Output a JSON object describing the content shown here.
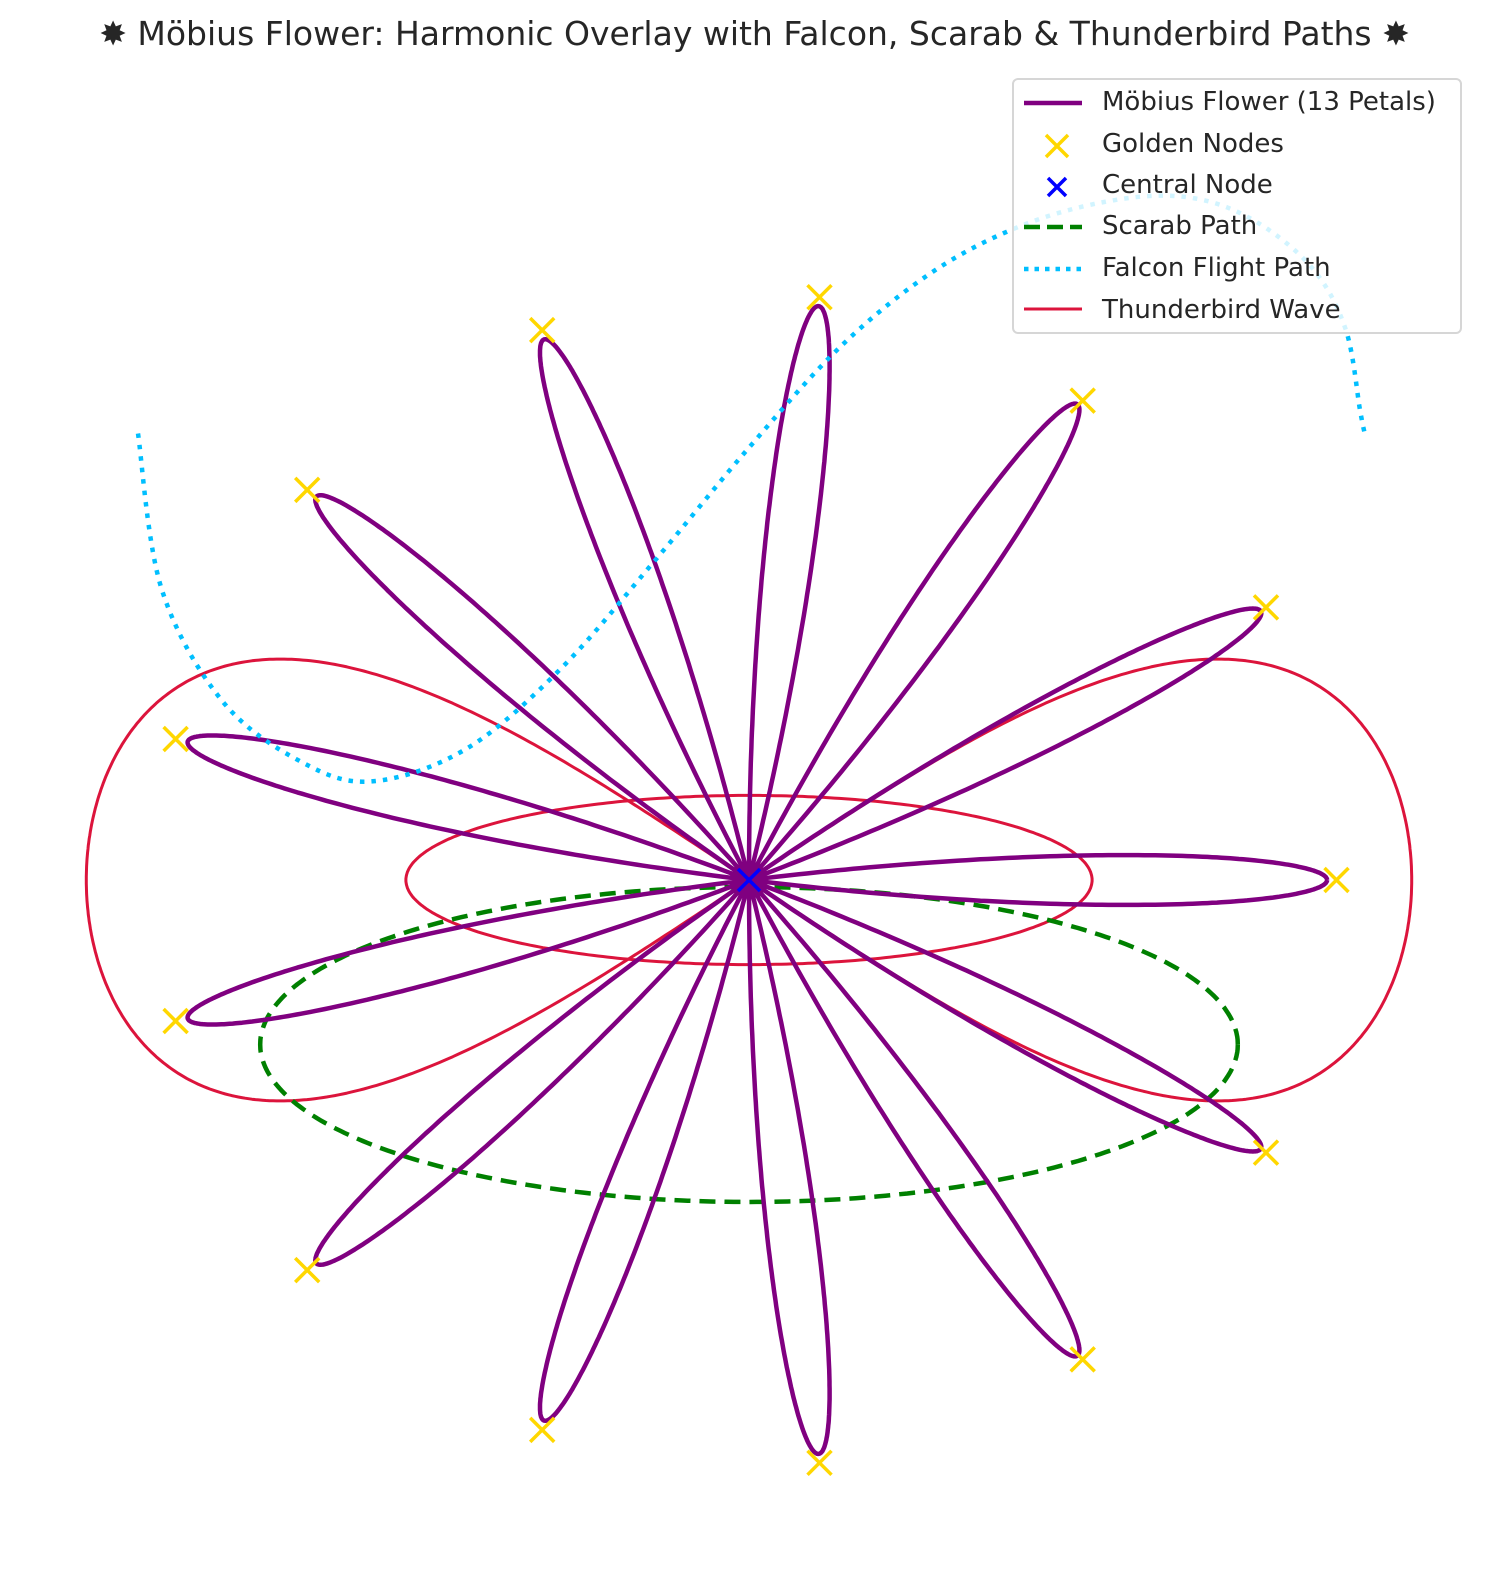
{
  "chart_data": {
    "type": "line",
    "title": "✸ Möbius Flower: Harmonic Overlay with Falcon, Scarab & Thunderbird Paths ✸",
    "xlabel": "",
    "ylabel": "",
    "grid": false,
    "axes_visible": false,
    "xlim": [
      -1.55,
      1.55
    ],
    "ylim": [
      -1.45,
      1.6
    ],
    "legend_placement": "upper right",
    "series": [
      {
        "name": "Möbius Flower (13 Petals)",
        "kind": "rose_curve",
        "equation": "r = cos(13θ), x = 1.2·r·cosθ, y = 1.2·r·sinθ",
        "petals": 13,
        "x_radius": 1.2,
        "y_radius": 1.2,
        "color": "#800080",
        "linestyle": "solid"
      },
      {
        "name": "Golden Nodes",
        "kind": "markers",
        "marker": "x",
        "color": "#ffd700",
        "points": [
          [
            1.25,
            0.0
          ],
          [
            1.1,
            0.58
          ],
          [
            0.71,
            1.02
          ],
          [
            0.15,
            1.24
          ],
          [
            -0.44,
            1.17
          ],
          [
            -0.94,
            0.83
          ],
          [
            -1.22,
            0.3
          ],
          [
            -1.22,
            -0.3
          ],
          [
            -0.94,
            -0.83
          ],
          [
            -0.44,
            -1.17
          ],
          [
            0.15,
            -1.24
          ],
          [
            0.71,
            -1.02
          ],
          [
            1.1,
            -0.58
          ]
        ]
      },
      {
        "name": "Central Node",
        "kind": "markers",
        "marker": "x",
        "color": "#0000ff",
        "points": [
          [
            0.0,
            0.0
          ]
        ]
      },
      {
        "name": "Scarab Path",
        "kind": "ellipse",
        "center": [
          0.0,
          -0.35
        ],
        "semi_axes": [
          1.0,
          0.3
        ],
        "color": "#008000",
        "linestyle": "dashed"
      },
      {
        "name": "Falcon Flight Path",
        "kind": "parametric",
        "equation": "x = -1.3 + 2.6·t, y = 0.85 − 0.5·sin(π·t) + 0.5·sin(2π·t)·... (traced)",
        "points": [
          [
            -1.3,
            0.95
          ],
          [
            -1.25,
            0.62
          ],
          [
            -1.12,
            0.38
          ],
          [
            -0.95,
            0.25
          ],
          [
            -0.8,
            0.21
          ],
          [
            -0.6,
            0.28
          ],
          [
            -0.4,
            0.45
          ],
          [
            -0.2,
            0.68
          ],
          [
            0.0,
            0.92
          ],
          [
            0.2,
            1.14
          ],
          [
            0.4,
            1.3
          ],
          [
            0.6,
            1.4
          ],
          [
            0.8,
            1.45
          ],
          [
            0.95,
            1.45
          ],
          [
            1.08,
            1.4
          ],
          [
            1.2,
            1.3
          ],
          [
            1.27,
            1.17
          ],
          [
            1.3,
            1.0
          ],
          [
            1.31,
            0.95
          ]
        ],
        "color": "#00bfff",
        "linestyle": "dotted"
      },
      {
        "name": "Thunderbird Wave",
        "kind": "lemniscate_pair",
        "equation": "x = 1.4·sin(t), y = 0.45·sin(2t) − 0.18·cos(t)… (traced)",
        "color": "#dc143c",
        "linestyle": "solid"
      }
    ]
  }
}
